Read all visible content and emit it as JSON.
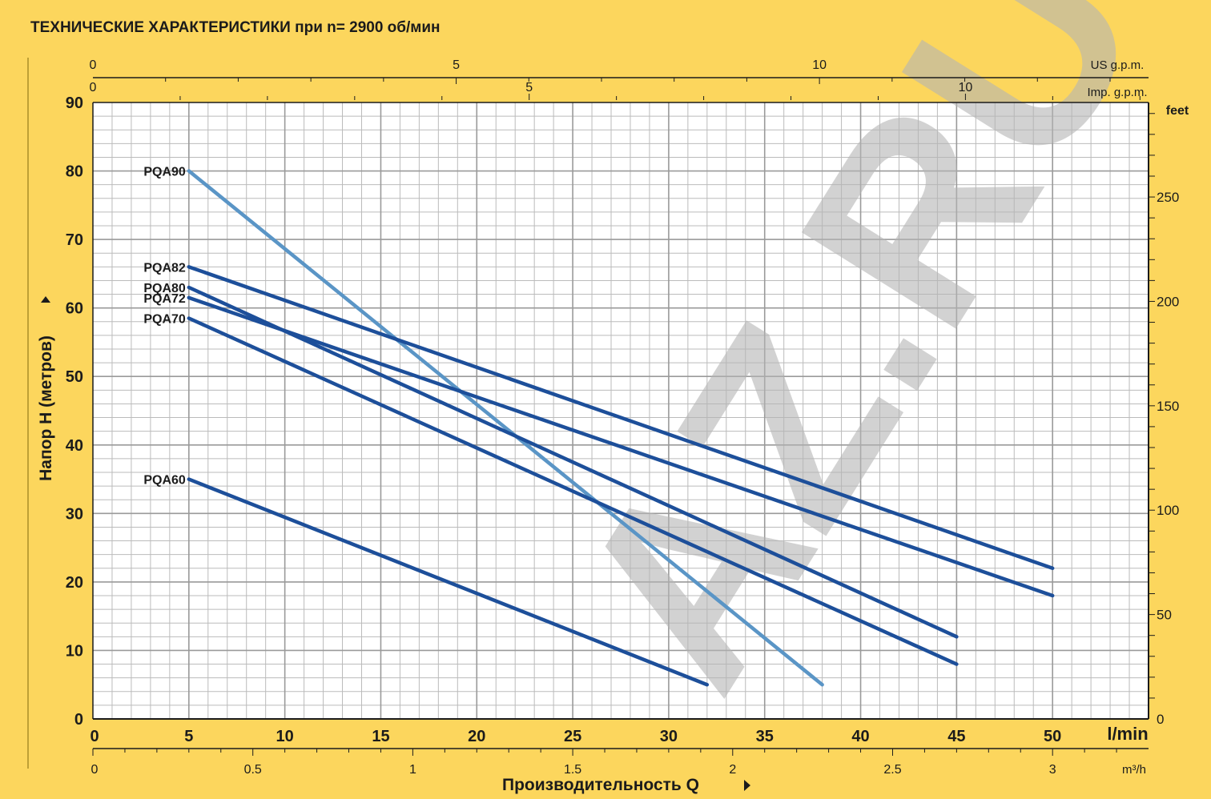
{
  "chart_data": {
    "type": "line",
    "title": "ТЕХНИЧЕСКИЕ ХАРАКТЕРИСТИКИ при n= 2900 об/мин",
    "xlabel": "Производительность Q",
    "ylabel": "Напор H   (метров)",
    "x_unit": "l/min",
    "xlim": [
      0,
      55
    ],
    "ylim": [
      0,
      90
    ],
    "grid": true,
    "x_ticks": [
      "0",
      "5",
      "10",
      "15",
      "20",
      "25",
      "30",
      "35",
      "40",
      "45",
      "50"
    ],
    "y_ticks": [
      "0",
      "10",
      "20",
      "30",
      "40",
      "50",
      "60",
      "70",
      "80",
      "90"
    ],
    "secondary_axes": {
      "feet": {
        "label": "feet",
        "ticks": [
          "0",
          "50",
          "100",
          "150",
          "200",
          "250"
        ]
      },
      "m3h": {
        "label": "m³/h",
        "ticks": [
          "0",
          "0.5",
          "1",
          "1.5",
          "2",
          "2.5",
          "3"
        ]
      },
      "us_gpm": {
        "label": "US g.p.m.",
        "ticks": [
          "0",
          "5",
          "10"
        ]
      },
      "imp_gpm": {
        "label": "Imp. g.p.m.",
        "ticks": [
          "0",
          "5",
          "10"
        ]
      }
    },
    "series": [
      {
        "name": "PQA90",
        "x": [
          5,
          38
        ],
        "y": [
          80,
          5
        ],
        "color": "#5a95c6"
      },
      {
        "name": "PQA82",
        "x": [
          5,
          50
        ],
        "y": [
          66,
          22
        ],
        "color": "#1d4f9a"
      },
      {
        "name": "PQA80",
        "x": [
          5,
          45
        ],
        "y": [
          63,
          12
        ],
        "color": "#1d4f9a"
      },
      {
        "name": "PQA72",
        "x": [
          5,
          50
        ],
        "y": [
          61.5,
          18
        ],
        "color": "#1d4f9a"
      },
      {
        "name": "PQA70",
        "x": [
          5,
          45
        ],
        "y": [
          58.5,
          8
        ],
        "color": "#1d4f9a"
      },
      {
        "name": "PQA60",
        "x": [
          5,
          32
        ],
        "y": [
          35,
          5
        ],
        "color": "#1d4f9a"
      }
    ]
  },
  "watermark": "AZ.RU",
  "colors": {
    "page_bg": "#fcd65d",
    "plot_bg": "#ffffff",
    "grid": "#bbbbbb",
    "axis": "#1b1b1b",
    "watermark": "#b4b4b4"
  }
}
